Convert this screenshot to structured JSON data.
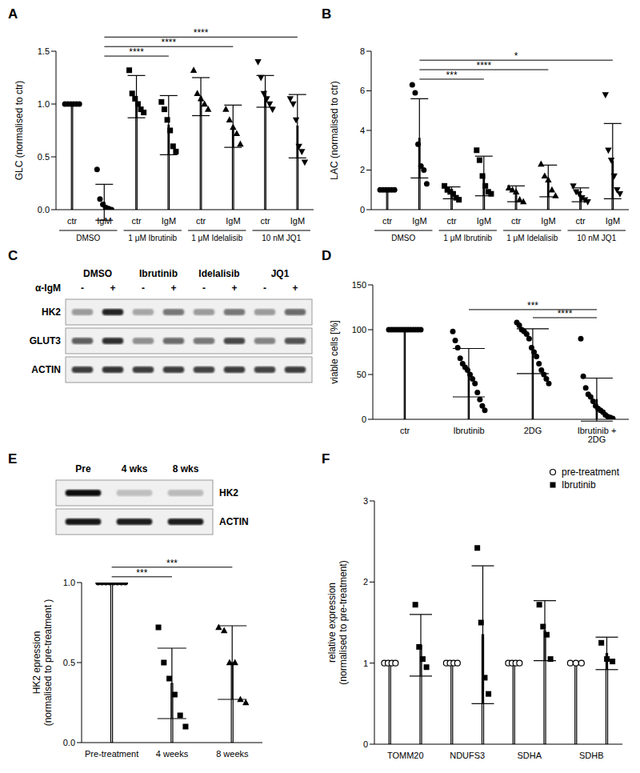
{
  "chart_data": [
    {
      "type": "bar",
      "title": "A",
      "ylabel": "GLC (normalised to ctr)",
      "categories": [
        "ctr",
        "IgM",
        "ctr",
        "IgM",
        "ctr",
        "IgM",
        "ctr",
        "IgM"
      ],
      "groups": [
        {
          "label": "DMSO",
          "span": [
            0,
            1
          ]
        },
        {
          "label": "1 μM Ibrutinib",
          "span": [
            2,
            3
          ]
        },
        {
          "label": "1 μM Idelalisib",
          "span": [
            4,
            5
          ]
        },
        {
          "label": "10 nM JQ1",
          "span": [
            6,
            7
          ]
        }
      ],
      "values": [
        1.0,
        0.07,
        1.07,
        0.8,
        1.07,
        0.79,
        1.12,
        0.79
      ],
      "errors": [
        0,
        0.17,
        0.2,
        0.28,
        0.18,
        0.2,
        0.15,
        0.3
      ],
      "points": [
        [
          1,
          1,
          1,
          1,
          1,
          1
        ],
        [
          0.38,
          0.1,
          0.05,
          0.02,
          0.01,
          0.0
        ],
        [
          1.32,
          1.1,
          1.05,
          1.0,
          0.95,
          0.92
        ],
        [
          1.02,
          0.95,
          0.85,
          0.75,
          0.6,
          0.55
        ],
        [
          1.32,
          1.1,
          1.05,
          1.0,
          0.95
        ],
        [
          0.95,
          0.85,
          0.78,
          0.72,
          0.62
        ],
        [
          1.4,
          1.25,
          1.1,
          1.05,
          1.0,
          0.95
        ],
        [
          1.05,
          1.0,
          0.85,
          0.6,
          0.55,
          0.45
        ]
      ],
      "markers": [
        "circle",
        "circle",
        "square",
        "square",
        "triangle",
        "triangle",
        "triangle-down",
        "triangle-down"
      ],
      "color": "#ffffff",
      "ylim": [
        0,
        1.5
      ],
      "yticks": [
        {
          "value": 0,
          "label": "0.0"
        },
        {
          "value": 0.5,
          "label": "0.5"
        },
        {
          "value": 1,
          "label": "1.0"
        },
        {
          "value": 1.5,
          "label": "1.5"
        }
      ],
      "annotations": [
        {
          "text": "****",
          "between": [
            1,
            3
          ]
        },
        {
          "text": "****",
          "between": [
            1,
            5
          ]
        },
        {
          "text": "****",
          "between": [
            1,
            7
          ]
        }
      ]
    },
    {
      "type": "bar",
      "title": "B",
      "ylabel": "LAC (normalised to ctr)",
      "categories": [
        "ctr",
        "IgM",
        "ctr",
        "IgM",
        "ctr",
        "IgM",
        "ctr",
        "IgM"
      ],
      "groups": [
        {
          "label": "DMSO",
          "span": [
            0,
            1
          ]
        },
        {
          "label": "1 μM Ibrutinib",
          "span": [
            2,
            3
          ]
        },
        {
          "label": "1 μM Idelalisib",
          "span": [
            4,
            5
          ]
        },
        {
          "label": "10 nM JQ1",
          "span": [
            6,
            7
          ]
        }
      ],
      "values": [
        1.0,
        3.6,
        0.85,
        1.7,
        0.8,
        1.45,
        0.75,
        2.45
      ],
      "errors": [
        0,
        2.0,
        0.3,
        1.0,
        0.4,
        0.8,
        0.35,
        1.9
      ],
      "points": [
        [
          1,
          1,
          1,
          1,
          1,
          1
        ],
        [
          6.3,
          5.9,
          3.3,
          2.2,
          2.0,
          1.3
        ],
        [
          1.2,
          1.0,
          0.9,
          0.8,
          0.6,
          0.5
        ],
        [
          3.0,
          2.5,
          1.7,
          1.2,
          0.9,
          0.8
        ],
        [
          1.1,
          1.0,
          0.9,
          0.5,
          0.4
        ],
        [
          2.3,
          1.7,
          1.5,
          1.0,
          0.7
        ],
        [
          1.2,
          0.9,
          0.8,
          0.6,
          0.5,
          0.4
        ],
        [
          5.8,
          3.0,
          2.5,
          1.7,
          1.0,
          0.8
        ]
      ],
      "markers": [
        "circle",
        "circle",
        "square",
        "square",
        "triangle",
        "triangle",
        "triangle-down",
        "triangle-down"
      ],
      "color": "#ffffff",
      "ylim": [
        0,
        8
      ],
      "yticks": [
        0,
        2,
        4,
        6,
        8
      ],
      "annotations": [
        {
          "text": "***",
          "between": [
            1,
            3
          ]
        },
        {
          "text": "****",
          "between": [
            1,
            5
          ]
        },
        {
          "text": "*",
          "between": [
            1,
            7
          ]
        }
      ]
    },
    {
      "type": "blot",
      "title": "C",
      "row_label": "α-IgM",
      "groups": [
        {
          "label": "DMSO",
          "span": [
            0,
            1
          ]
        },
        {
          "label": "Ibrutinib",
          "span": [
            2,
            3
          ]
        },
        {
          "label": "Idelalisib",
          "span": [
            4,
            5
          ]
        },
        {
          "label": "JQ1",
          "span": [
            6,
            7
          ]
        }
      ],
      "lanes": [
        "-",
        "+",
        "-",
        "+",
        "-",
        "+",
        "-",
        "+"
      ],
      "rows": [
        {
          "label": "HK2",
          "bands": [
            0.35,
            0.85,
            0.3,
            0.5,
            0.35,
            0.5,
            0.35,
            0.55
          ]
        },
        {
          "label": "GLUT3",
          "bands": [
            0.6,
            0.8,
            0.4,
            0.55,
            0.5,
            0.7,
            0.45,
            0.65
          ]
        },
        {
          "label": "ACTIN",
          "bands": [
            0.75,
            0.78,
            0.75,
            0.75,
            0.72,
            0.75,
            0.72,
            0.75
          ]
        }
      ]
    },
    {
      "type": "bar",
      "title": "D",
      "ylabel": "viable cells [%]",
      "categories": [
        "ctr",
        "Ibrutinib",
        "2DG",
        "Ibrutinib + 2DG"
      ],
      "values": [
        100,
        52,
        76,
        22
      ],
      "errors": [
        0,
        27,
        25,
        24
      ],
      "points": [
        [
          100,
          100,
          100,
          100,
          100,
          100,
          100,
          100,
          100,
          100,
          100,
          100,
          100,
          100
        ],
        [
          98,
          88,
          80,
          68,
          62,
          58,
          55,
          50,
          45,
          40,
          30,
          22,
          15,
          10
        ],
        [
          108,
          105,
          100,
          98,
          95,
          90,
          80,
          75,
          70,
          62,
          55,
          50,
          45,
          40
        ],
        [
          90,
          48,
          35,
          28,
          25,
          20,
          15,
          12,
          10,
          8,
          5,
          3,
          2,
          1
        ]
      ],
      "markers": [
        "circle",
        "circle",
        "circle",
        "circle"
      ],
      "color": "#ffffff",
      "ylim": [
        0,
        150
      ],
      "yticks": [
        0,
        50,
        100,
        150
      ],
      "annotations": [
        {
          "text": "****",
          "between": [
            2,
            3
          ]
        },
        {
          "text": "***",
          "between": [
            1,
            3
          ]
        }
      ]
    },
    {
      "type": "blot",
      "title": "E",
      "lanes": [
        "Pre",
        "4 wks",
        "8 wks"
      ],
      "rows": [
        {
          "label": "HK2",
          "bands": [
            0.95,
            0.2,
            0.22
          ]
        },
        {
          "label": "ACTIN",
          "bands": [
            0.9,
            0.88,
            0.88
          ]
        }
      ]
    },
    {
      "type": "bar",
      "ylabel": "HK2 epression (normalised to pre-treatment )",
      "categories": [
        "Pre-treatment",
        "4 weeks",
        "8 weeks"
      ],
      "values": [
        1.0,
        0.37,
        0.5
      ],
      "errors": [
        0,
        0.22,
        0.23
      ],
      "points": [
        [
          1,
          1,
          1,
          1,
          1,
          1,
          1,
          1
        ],
        [
          0.72,
          0.5,
          0.4,
          0.3,
          0.17,
          0.1
        ],
        [
          0.72,
          0.7,
          0.5,
          0.5,
          0.27,
          0.25
        ]
      ],
      "markers": [
        "circle",
        "square",
        "triangle"
      ],
      "color": "#ffffff",
      "ylim": [
        0,
        1
      ],
      "yticks": [
        {
          "value": 0,
          "label": "0.0"
        },
        {
          "value": 0.5,
          "label": "0.5"
        },
        {
          "value": 1,
          "label": "1.0"
        }
      ],
      "annotations": [
        {
          "text": "***",
          "between": [
            0,
            1
          ]
        },
        {
          "text": "***",
          "between": [
            0,
            2
          ]
        }
      ]
    },
    {
      "type": "bar",
      "title": "F",
      "ylabel": "relative expression (normalised to pre-treatment)",
      "categories": [
        "TOMM20",
        "NDUFS3",
        "SDHA",
        "SDHB"
      ],
      "legend": "upper right",
      "series": [
        {
          "name": "pre-treatment",
          "color": "#ffffff",
          "marker": "circle-open",
          "values": [
            1,
            1,
            1,
            1
          ],
          "errors": [
            0,
            0,
            0,
            0
          ],
          "points": [
            [
              1,
              1,
              1,
              1
            ],
            [
              1,
              1,
              1,
              1
            ],
            [
              1,
              1,
              1,
              1
            ],
            [
              1,
              1,
              1
            ]
          ]
        },
        {
          "name": "Ibrutinib",
          "color": "#ffffff",
          "marker": "square",
          "values": [
            1.22,
            1.35,
            1.4,
            1.12
          ],
          "errors": [
            0.38,
            0.85,
            0.37,
            0.2
          ],
          "points": [
            [
              1.72,
              1.2,
              1.05,
              0.95
            ],
            [
              2.42,
              1.5,
              0.82,
              0.62
            ],
            [
              1.72,
              1.45,
              1.35,
              1.05
            ],
            [
              1.25,
              1.05,
              1.02
            ]
          ]
        }
      ],
      "ylim": [
        0,
        3
      ],
      "yticks": [
        0,
        1,
        2,
        3
      ]
    }
  ]
}
